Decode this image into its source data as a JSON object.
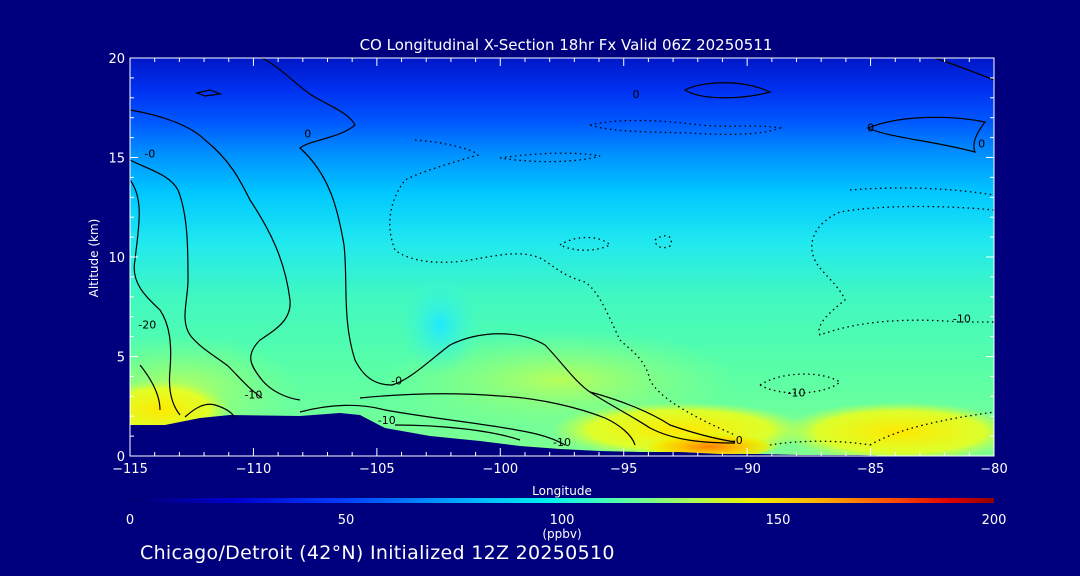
{
  "footer_text": "Chicago/Detroit (42°N) Initialized 12Z 20250510",
  "chart_data": {
    "type": "heatmap",
    "title": "CO Longitudinal X-Section 18hr  Fx Valid 06Z 20250511",
    "xlabel": "Longitude",
    "ylabel": "Altitude (km)",
    "xlim": [
      -115,
      -80
    ],
    "ylim": [
      0,
      20
    ],
    "xticks": [
      -115,
      -110,
      -105,
      -100,
      -95,
      -90,
      -85,
      -80
    ],
    "xtick_labels": [
      "−115",
      "−110",
      "−105",
      "−100",
      "−95",
      "−90",
      "−85",
      "−80"
    ],
    "yticks": [
      0,
      5,
      10,
      15,
      20
    ],
    "colorbar": {
      "label": "(ppbv)",
      "min": 0,
      "max": 200,
      "ticks": [
        0,
        50,
        100,
        150,
        200
      ],
      "colors": [
        "#00007e",
        "#0000d0",
        "#0030ff",
        "#0080ff",
        "#00c8ff",
        "#40ffd0",
        "#90ff80",
        "#d8ff30",
        "#ffe000",
        "#ff9000",
        "#ff3000",
        "#c00000",
        "#800000"
      ]
    },
    "contour_labels": [
      {
        "text": "0",
        "x": -107.8,
        "y": 16
      },
      {
        "text": "0",
        "x": -94.5,
        "y": 18
      },
      {
        "text": "0",
        "x": -85,
        "y": 16.3
      },
      {
        "text": "0",
        "x": -80.5,
        "y": 15.5
      },
      {
        "text": "-0",
        "x": -114.2,
        "y": 15
      },
      {
        "text": "-20",
        "x": -114.3,
        "y": 6.4
      },
      {
        "text": "-10",
        "x": -110,
        "y": 2.9
      },
      {
        "text": "-0",
        "x": -104.2,
        "y": 3.6
      },
      {
        "text": "-10",
        "x": -104.6,
        "y": 1.6
      },
      {
        "text": "-10",
        "x": -97.5,
        "y": 0.5
      },
      {
        "text": "-0",
        "x": -90.4,
        "y": 0.6
      },
      {
        "text": "-10",
        "x": -88,
        "y": 3
      },
      {
        "text": "-10",
        "x": -81.3,
        "y": 6.7
      }
    ]
  }
}
